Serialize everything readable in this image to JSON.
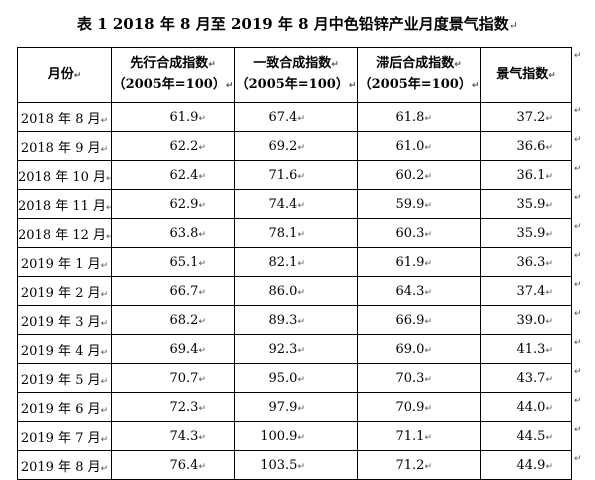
{
  "title": "表 1  2018 年 8 月至 2019 年 8 月中色铅锌产业月度景气指数",
  "para_mark": "↵",
  "headers": {
    "month": "月份",
    "leading": [
      "先行合成指数",
      "（2005年=100）"
    ],
    "coincident": [
      "一致合成指数",
      "（2005年=100）"
    ],
    "lagging": [
      "滞后合成指数",
      "（2005年=100）"
    ],
    "prosperity": "景气指数"
  },
  "rows": [
    {
      "month": "2018 年 8 月",
      "leading": "61.9",
      "coincident": "67.4",
      "lagging": "61.8",
      "prosperity": "37.2"
    },
    {
      "month": "2018 年 9 月",
      "leading": "62.2",
      "coincident": "69.2",
      "lagging": "61.0",
      "prosperity": "36.6"
    },
    {
      "month": "2018 年 10 月",
      "leading": "62.4",
      "coincident": "71.6",
      "lagging": "60.2",
      "prosperity": "36.1"
    },
    {
      "month": "2018 年 11 月",
      "leading": "62.9",
      "coincident": "74.4",
      "lagging": "59.9",
      "prosperity": "35.9"
    },
    {
      "month": "2018 年 12 月",
      "leading": "63.8",
      "coincident": "78.1",
      "lagging": "60.3",
      "prosperity": "35.9"
    },
    {
      "month": "2019 年 1 月",
      "leading": "65.1",
      "coincident": "82.1",
      "lagging": "61.9",
      "prosperity": "36.3"
    },
    {
      "month": "2019 年 2 月",
      "leading": "66.7",
      "coincident": "86.0",
      "lagging": "64.3",
      "prosperity": "37.4"
    },
    {
      "month": "2019 年 3 月",
      "leading": "68.2",
      "coincident": "89.3",
      "lagging": "66.9",
      "prosperity": "39.0"
    },
    {
      "month": "2019 年 4 月",
      "leading": "69.4",
      "coincident": "92.3",
      "lagging": "69.0",
      "prosperity": "41.3"
    },
    {
      "month": "2019 年 5 月",
      "leading": "70.7",
      "coincident": "95.0",
      "lagging": "70.3",
      "prosperity": "43.7"
    },
    {
      "month": "2019 年 6 月",
      "leading": "72.3",
      "coincident": "97.9",
      "lagging": "70.9",
      "prosperity": "44.0"
    },
    {
      "month": "2019 年 7 月",
      "leading": "74.3",
      "coincident": "100.9",
      "lagging": "71.1",
      "prosperity": "44.5"
    },
    {
      "month": "2019 年 8 月",
      "leading": "76.4",
      "coincident": "103.5",
      "lagging": "71.2",
      "prosperity": "44.9"
    }
  ]
}
